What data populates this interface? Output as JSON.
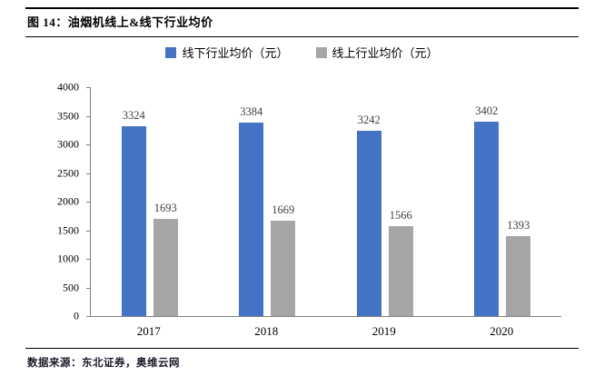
{
  "figure": {
    "title": "图 14：油烟机线上&线下行业均价",
    "source": "数据来源：东北证券，奥维云网"
  },
  "chart_data": {
    "type": "bar",
    "title": "图 14：油烟机线上&线下行业均价",
    "categories": [
      "2017",
      "2018",
      "2019",
      "2020"
    ],
    "series": [
      {
        "name": "线下行业均价（元）",
        "color": "#4472C4",
        "values": [
          3324,
          3384,
          3242,
          3402
        ]
      },
      {
        "name": "线上行业均价（元）",
        "color": "#A6A6A6",
        "values": [
          1693,
          1669,
          1566,
          1393
        ]
      }
    ],
    "ylim": [
      0,
      4000
    ],
    "ytick_step": 500,
    "y_tick_labels": [
      "0",
      "500",
      "1000",
      "1500",
      "2000",
      "2500",
      "3000",
      "3500",
      "4000"
    ],
    "grid": false,
    "legend_position": "top",
    "data_labels": true,
    "source": "数据来源：东北证券，奥维云网"
  }
}
